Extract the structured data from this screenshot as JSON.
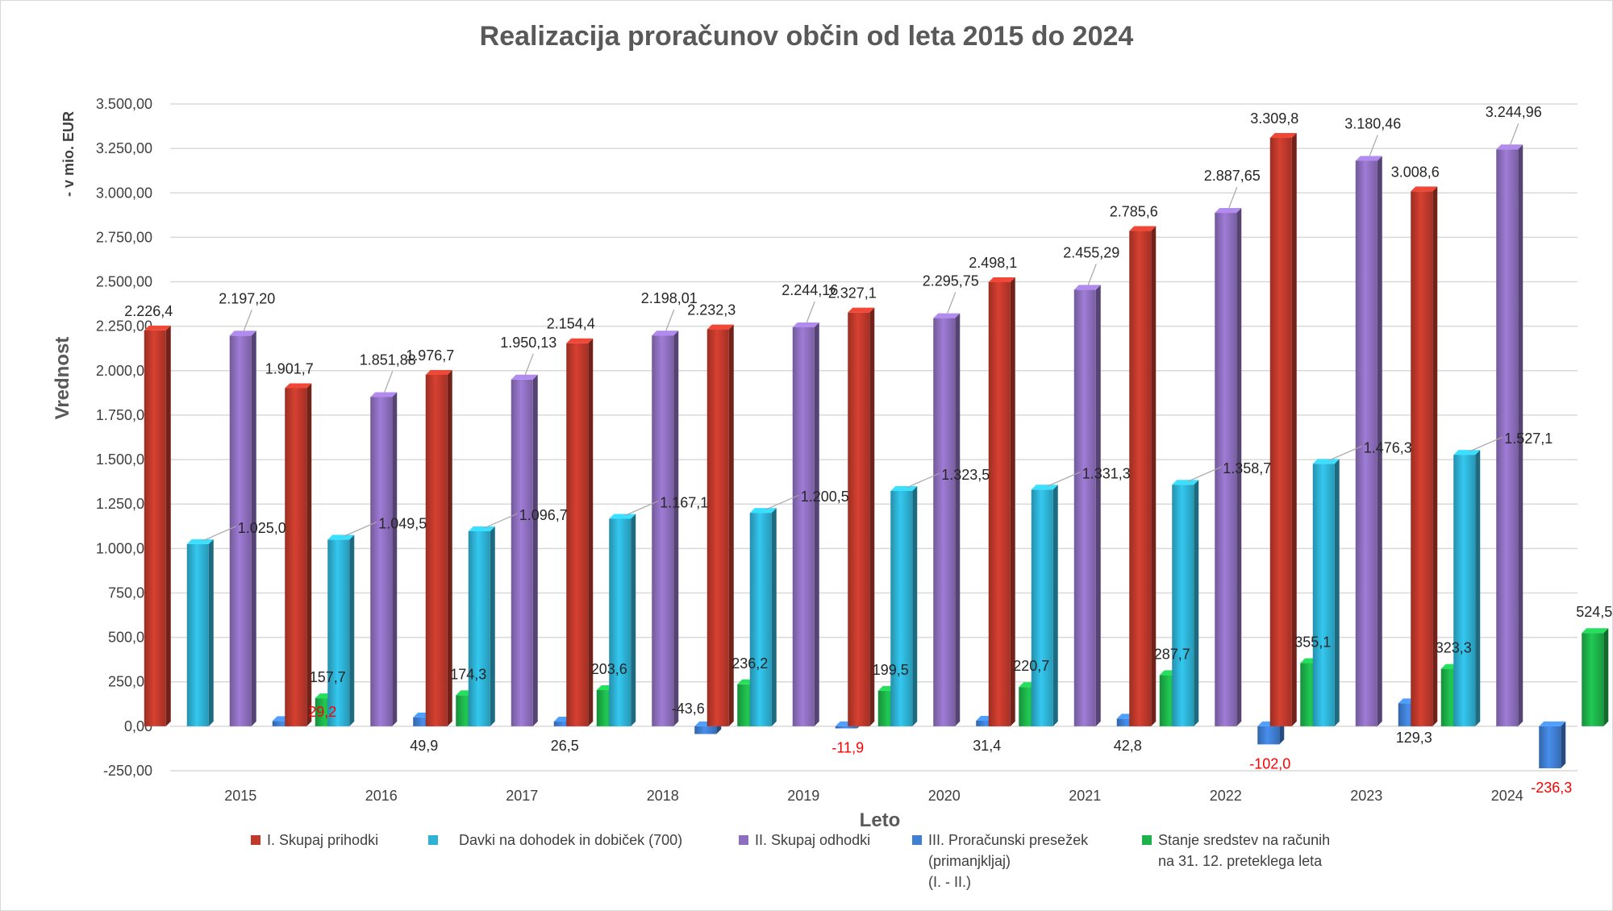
{
  "chart_data": {
    "type": "bar",
    "title": "Realizacija proračunov občin od leta 2015 do 2024",
    "xlabel": "Leto",
    "ylabel": "Vrednost",
    "unit_label": "- v mio. EUR",
    "ylim": [
      -250,
      3500
    ],
    "yticks": [
      -250,
      0,
      250,
      500,
      750,
      1000,
      1250,
      1500,
      1750,
      2000,
      2250,
      2500,
      2750,
      3000,
      3250,
      3500
    ],
    "ytick_labels": [
      "-250,00",
      "0,00",
      "250,00",
      "500,00",
      "750,00",
      "1.000,00",
      "1.250,00",
      "1.500,00",
      "1.750,00",
      "2.000,00",
      "2.250,00",
      "2.500,00",
      "2.750,00",
      "3.000,00",
      "3.250,00",
      "3.500,00"
    ],
    "grid": true,
    "legend_position": "bottom",
    "categories": [
      "2015",
      "2016",
      "2017",
      "2018",
      "2019",
      "2020",
      "2021",
      "2022",
      "2023",
      "2024"
    ],
    "series": [
      {
        "name": "I. Skupaj prihodki",
        "color": "#c0392b",
        "values": [
          2226.4,
          1901.7,
          1976.7,
          2154.4,
          2232.3,
          2327.1,
          2498.1,
          2785.6,
          3309.8,
          3008.6
        ],
        "labels": [
          "2.226,4",
          "1.901,7",
          "1.976,7",
          "2.154,4",
          "2.232,3",
          "2.327,1",
          "2.498,1",
          "2.785,6",
          "3.309,8",
          "3.008,6"
        ]
      },
      {
        "name": "Davki na dohodek in dobiček (700)",
        "color": "#2eb3d6",
        "values": [
          1025.0,
          1049.5,
          1096.7,
          1167.1,
          1200.5,
          1323.5,
          1331.3,
          1358.7,
          1476.3,
          1527.1
        ],
        "labels": [
          "1.025,0",
          "1.049,5",
          "1.096,7",
          "1.167,1",
          "1.200,5",
          "1.323,5",
          "1.331,3",
          "1.358,7",
          "1.476,3",
          "1.527,1"
        ]
      },
      {
        "name": "II. Skupaj odhodki",
        "color": "#8e6fbf",
        "values": [
          2197.2,
          1851.88,
          1950.13,
          2198.01,
          2244.16,
          2295.75,
          2455.29,
          2887.65,
          3180.46,
          3244.96
        ],
        "labels": [
          "2.197,20",
          "1.851,88",
          "1.950,13",
          "2.198,01",
          "2.244,16",
          "2.295,75",
          "2.455,29",
          "2.887,65",
          "3.180,46",
          "3.244,96"
        ]
      },
      {
        "name": "III. Proračunski presežek (primanjkljaj) (I. - II.)",
        "legend_lines": [
          "III. Proračunski presežek",
          "(primanjkljaj)",
          "(I. - II.)"
        ],
        "color": "#3f7fd4",
        "values": [
          29.2,
          49.9,
          26.5,
          -43.6,
          -11.9,
          31.4,
          42.8,
          -102.0,
          129.3,
          -236.3
        ],
        "labels": [
          "29,2",
          "49,9",
          "26,5",
          "-43,6",
          "-11,9",
          "31,4",
          "42,8",
          "-102,0",
          "129,3",
          "-236,3"
        ]
      },
      {
        "name": "Stanje sredstev na računih na 31. 12. preteklega leta",
        "legend_lines": [
          "Stanje sredstev na računih",
          "na 31. 12. preteklega leta"
        ],
        "color": "#1db34a",
        "values": [
          157.7,
          174.3,
          203.6,
          236.2,
          199.5,
          220.7,
          287.7,
          355.1,
          323.3,
          524.5
        ],
        "labels": [
          "157,7",
          "174,3",
          "203,6",
          "236,2",
          "199,5",
          "220,7",
          "287,7",
          "355,1",
          "323,3",
          "524,5"
        ]
      }
    ]
  }
}
